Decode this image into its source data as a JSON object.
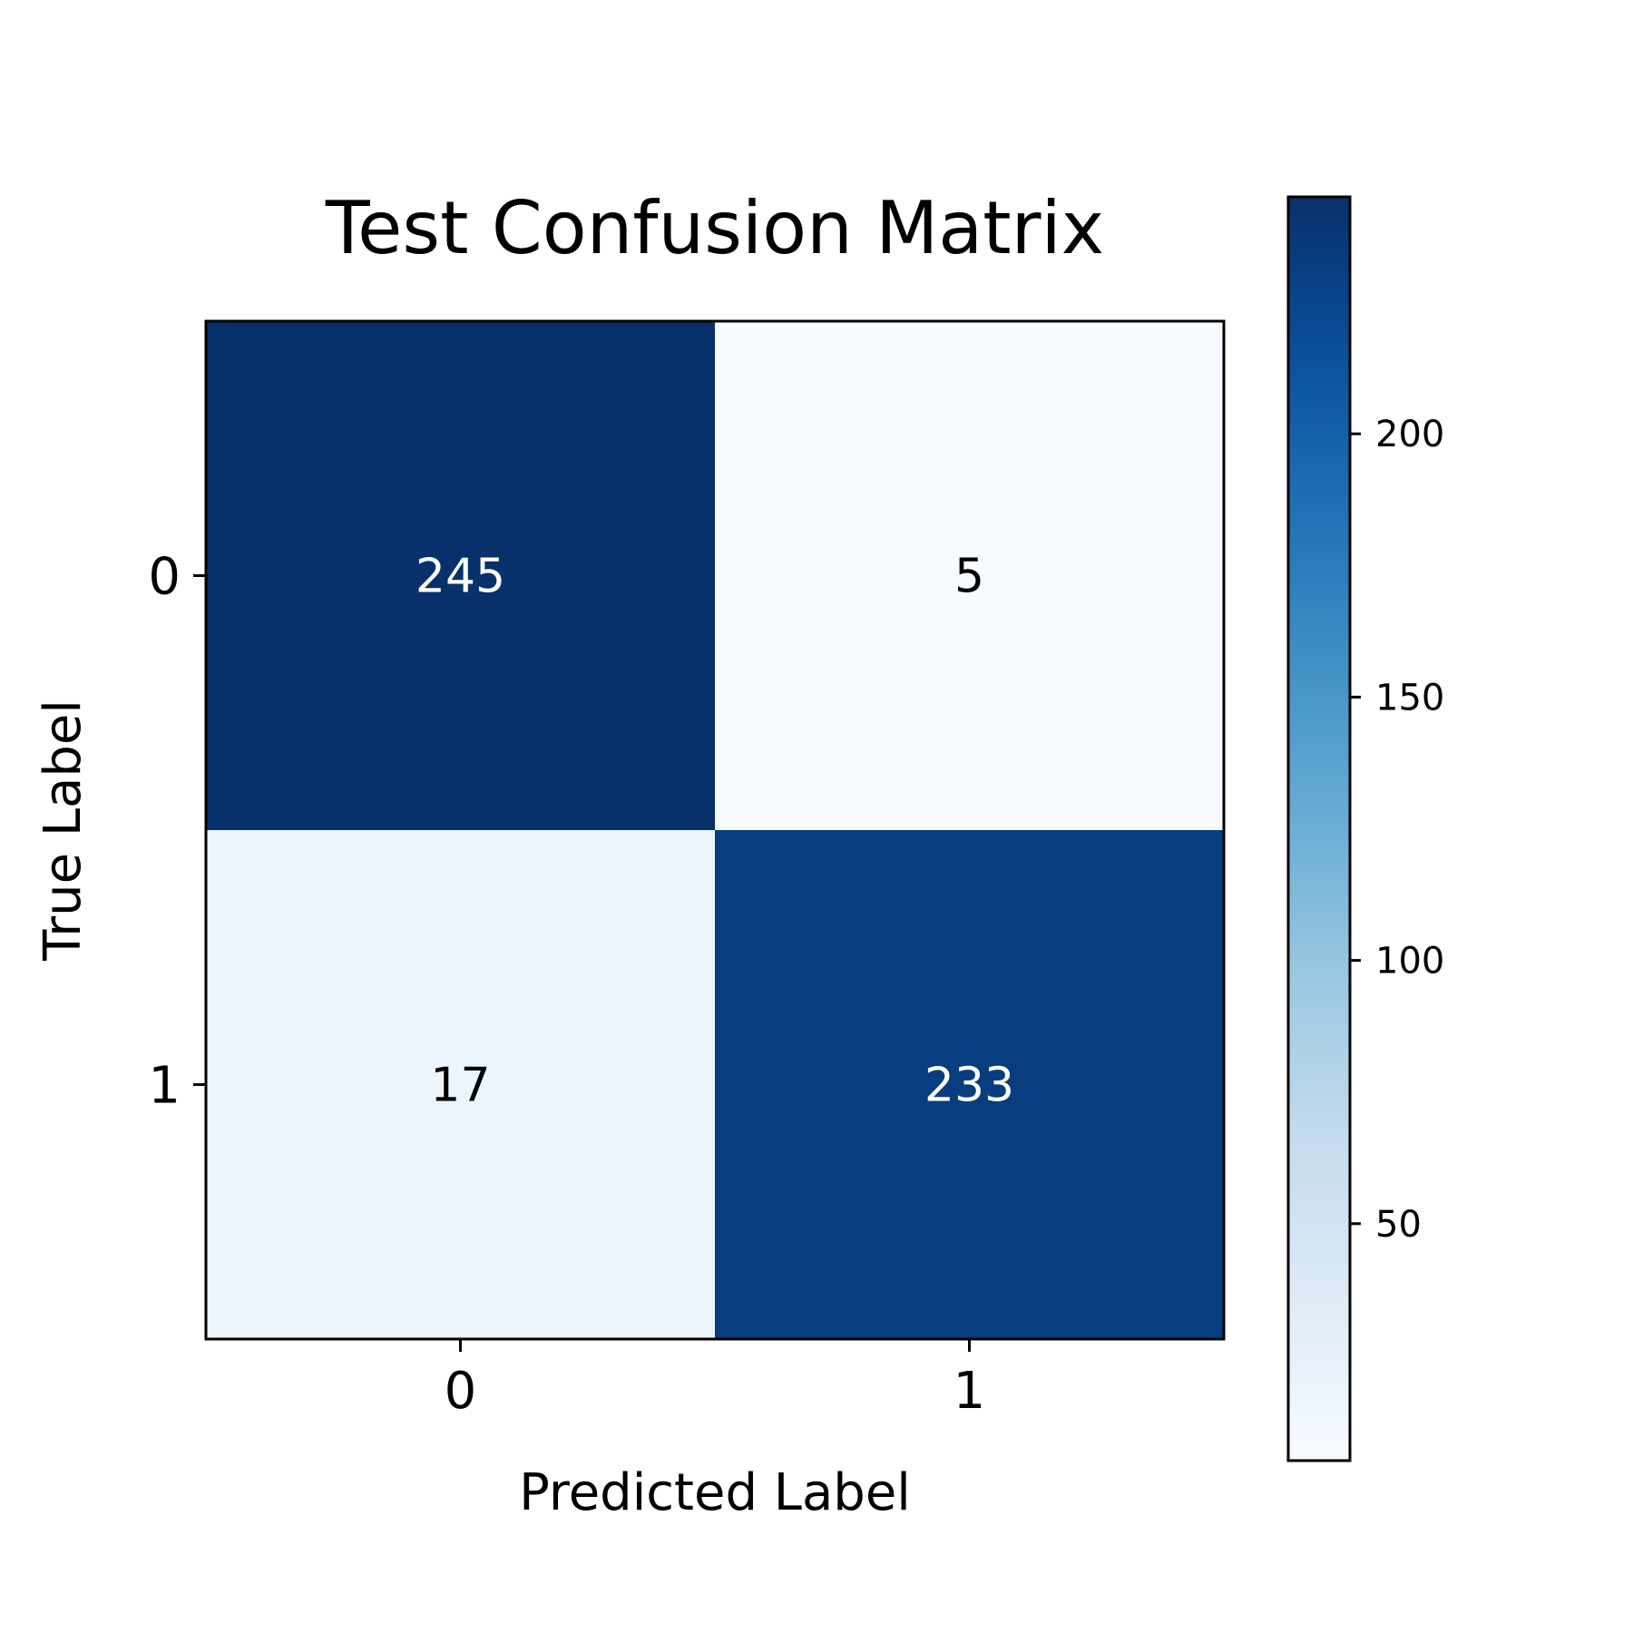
{
  "chart_data": {
    "type": "heatmap",
    "title": "Test Confusion Matrix",
    "xlabel": "Predicted Label",
    "ylabel": "True Label",
    "x_categories": [
      "0",
      "1"
    ],
    "y_categories": [
      "0",
      "1"
    ],
    "values": [
      [
        245,
        5
      ],
      [
        17,
        233
      ]
    ],
    "colormap": "Blues",
    "color_range": [
      5,
      245
    ],
    "colorbar_ticks": [
      "50",
      "100",
      "150",
      "200"
    ],
    "grid": false
  }
}
